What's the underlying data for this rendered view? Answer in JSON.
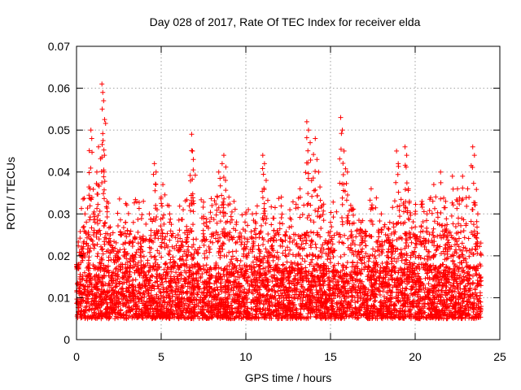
{
  "chart_data": {
    "type": "scatter",
    "title": "Day 028 of 2017, Rate Of TEC Index for receiver elda",
    "xlabel": "GPS time / hours",
    "ylabel": "ROTI / TECUs",
    "xlim": [
      0,
      25
    ],
    "ylim": [
      0,
      0.07
    ],
    "xticks": [
      0,
      5,
      10,
      15,
      20,
      25
    ],
    "yticks": [
      0,
      0.01,
      0.02,
      0.03,
      0.04,
      0.05,
      0.06,
      0.07
    ],
    "xtick_labels": [
      "0",
      "5",
      "10",
      "15",
      "20",
      "25"
    ],
    "ytick_labels": [
      "0",
      "0.01",
      "0.02",
      "0.03",
      "0.04",
      "0.05",
      "0.06",
      "0.07"
    ],
    "grid": true,
    "legend": "none",
    "marker": "plus",
    "color": "#ff0000",
    "x_range_of_data": [
      0,
      23.9
    ],
    "baseline_band": [
      0.005,
      0.018
    ],
    "outliers": [
      {
        "x": 0.1,
        "y": 0.017
      },
      {
        "x": 0.3,
        "y": 0.021
      },
      {
        "x": 0.5,
        "y": 0.03
      },
      {
        "x": 0.6,
        "y": 0.023
      },
      {
        "x": 0.8,
        "y": 0.036
      },
      {
        "x": 0.85,
        "y": 0.05
      },
      {
        "x": 0.9,
        "y": 0.048
      },
      {
        "x": 1.0,
        "y": 0.03
      },
      {
        "x": 1.2,
        "y": 0.04
      },
      {
        "x": 1.3,
        "y": 0.046
      },
      {
        "x": 1.5,
        "y": 0.061
      },
      {
        "x": 1.55,
        "y": 0.059
      },
      {
        "x": 1.6,
        "y": 0.057
      },
      {
        "x": 1.65,
        "y": 0.044
      },
      {
        "x": 1.8,
        "y": 0.033
      },
      {
        "x": 2.0,
        "y": 0.025
      },
      {
        "x": 2.3,
        "y": 0.02
      },
      {
        "x": 2.9,
        "y": 0.028
      },
      {
        "x": 3.3,
        "y": 0.02
      },
      {
        "x": 3.8,
        "y": 0.024
      },
      {
        "x": 4.3,
        "y": 0.03
      },
      {
        "x": 4.6,
        "y": 0.042
      },
      {
        "x": 4.7,
        "y": 0.04
      },
      {
        "x": 5.0,
        "y": 0.034
      },
      {
        "x": 5.1,
        "y": 0.037
      },
      {
        "x": 5.5,
        "y": 0.03
      },
      {
        "x": 6.0,
        "y": 0.025
      },
      {
        "x": 6.5,
        "y": 0.027
      },
      {
        "x": 6.8,
        "y": 0.049
      },
      {
        "x": 6.85,
        "y": 0.045
      },
      {
        "x": 6.9,
        "y": 0.043
      },
      {
        "x": 7.5,
        "y": 0.029
      },
      {
        "x": 8.0,
        "y": 0.032
      },
      {
        "x": 8.4,
        "y": 0.04
      },
      {
        "x": 8.6,
        "y": 0.042
      },
      {
        "x": 8.7,
        "y": 0.044
      },
      {
        "x": 8.8,
        "y": 0.038
      },
      {
        "x": 9.0,
        "y": 0.034
      },
      {
        "x": 9.3,
        "y": 0.033
      },
      {
        "x": 10.0,
        "y": 0.03
      },
      {
        "x": 10.5,
        "y": 0.026
      },
      {
        "x": 11.0,
        "y": 0.044
      },
      {
        "x": 11.1,
        "y": 0.042
      },
      {
        "x": 11.2,
        "y": 0.038
      },
      {
        "x": 11.6,
        "y": 0.029
      },
      {
        "x": 12.1,
        "y": 0.034
      },
      {
        "x": 12.6,
        "y": 0.031
      },
      {
        "x": 13.2,
        "y": 0.036
      },
      {
        "x": 13.6,
        "y": 0.052
      },
      {
        "x": 13.7,
        "y": 0.05
      },
      {
        "x": 13.8,
        "y": 0.047
      },
      {
        "x": 14.1,
        "y": 0.048
      },
      {
        "x": 14.2,
        "y": 0.043
      },
      {
        "x": 14.3,
        "y": 0.04
      },
      {
        "x": 14.5,
        "y": 0.032
      },
      {
        "x": 15.0,
        "y": 0.028
      },
      {
        "x": 15.6,
        "y": 0.053
      },
      {
        "x": 15.7,
        "y": 0.05
      },
      {
        "x": 15.8,
        "y": 0.045
      },
      {
        "x": 16.0,
        "y": 0.04
      },
      {
        "x": 16.3,
        "y": 0.031
      },
      {
        "x": 16.8,
        "y": 0.028
      },
      {
        "x": 17.4,
        "y": 0.036
      },
      {
        "x": 18.0,
        "y": 0.03
      },
      {
        "x": 18.5,
        "y": 0.028
      },
      {
        "x": 18.9,
        "y": 0.045
      },
      {
        "x": 19.0,
        "y": 0.042
      },
      {
        "x": 19.4,
        "y": 0.046
      },
      {
        "x": 19.5,
        "y": 0.044
      },
      {
        "x": 19.6,
        "y": 0.036
      },
      {
        "x": 20.0,
        "y": 0.03
      },
      {
        "x": 20.4,
        "y": 0.033
      },
      {
        "x": 20.7,
        "y": 0.03
      },
      {
        "x": 21.1,
        "y": 0.037
      },
      {
        "x": 21.5,
        "y": 0.04
      },
      {
        "x": 21.8,
        "y": 0.033
      },
      {
        "x": 22.2,
        "y": 0.039
      },
      {
        "x": 22.5,
        "y": 0.036
      },
      {
        "x": 22.8,
        "y": 0.039
      },
      {
        "x": 23.1,
        "y": 0.036
      },
      {
        "x": 23.4,
        "y": 0.046
      },
      {
        "x": 23.5,
        "y": 0.044
      },
      {
        "x": 23.7,
        "y": 0.03
      }
    ]
  }
}
